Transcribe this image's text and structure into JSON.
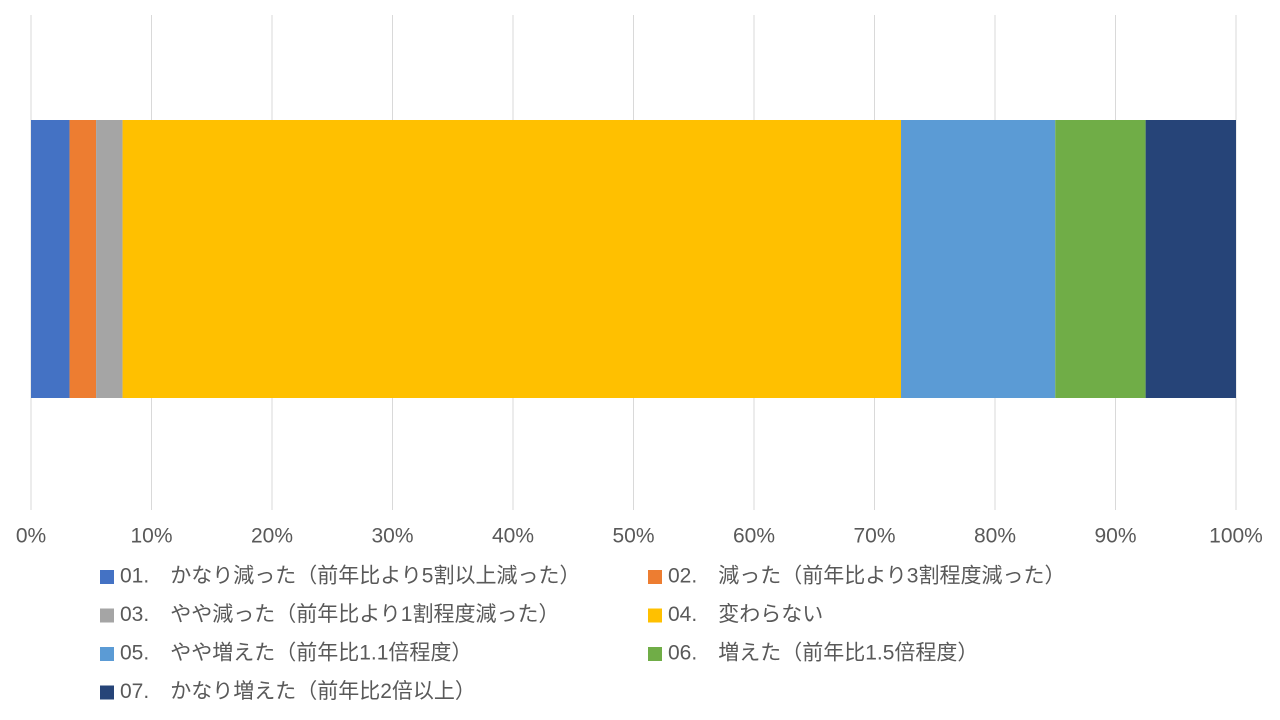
{
  "chart_data": {
    "type": "stacked-bar-horizontal",
    "series": [
      {
        "name": "01.　かなり減った（前年比より5割以上減った）",
        "color": "#4472c4",
        "values": [
          3.2
        ]
      },
      {
        "name": "02.　減った（前年比より3割程度減った）",
        "color": "#ed7d31",
        "values": [
          2.2
        ]
      },
      {
        "name": "03.　やや減った（前年比より1割程度減った）",
        "color": "#a5a5a5",
        "values": [
          2.2
        ]
      },
      {
        "name": "04.　変わらない",
        "color": "#ffc000",
        "values": [
          64.6
        ]
      },
      {
        "name": "05.　やや増えた（前年比1.1倍程度）",
        "color": "#5b9bd5",
        "values": [
          12.8
        ]
      },
      {
        "name": "06.　増えた（前年比1.5倍程度）",
        "color": "#70ad47",
        "values": [
          7.5
        ]
      },
      {
        "name": "07.　かなり増えた（前年比2倍以上）",
        "color": "#264478",
        "values": [
          7.5
        ]
      }
    ],
    "xlim": [
      0,
      100
    ],
    "xticks": [
      {
        "value": 0,
        "label": "0%"
      },
      {
        "value": 10,
        "label": "10%"
      },
      {
        "value": 20,
        "label": "20%"
      },
      {
        "value": 30,
        "label": "30%"
      },
      {
        "value": 40,
        "label": "40%"
      },
      {
        "value": 50,
        "label": "50%"
      },
      {
        "value": 60,
        "label": "60%"
      },
      {
        "value": 70,
        "label": "70%"
      },
      {
        "value": 80,
        "label": "80%"
      },
      {
        "value": 90,
        "label": "90%"
      },
      {
        "value": 100,
        "label": "100%"
      }
    ],
    "grid": true
  }
}
